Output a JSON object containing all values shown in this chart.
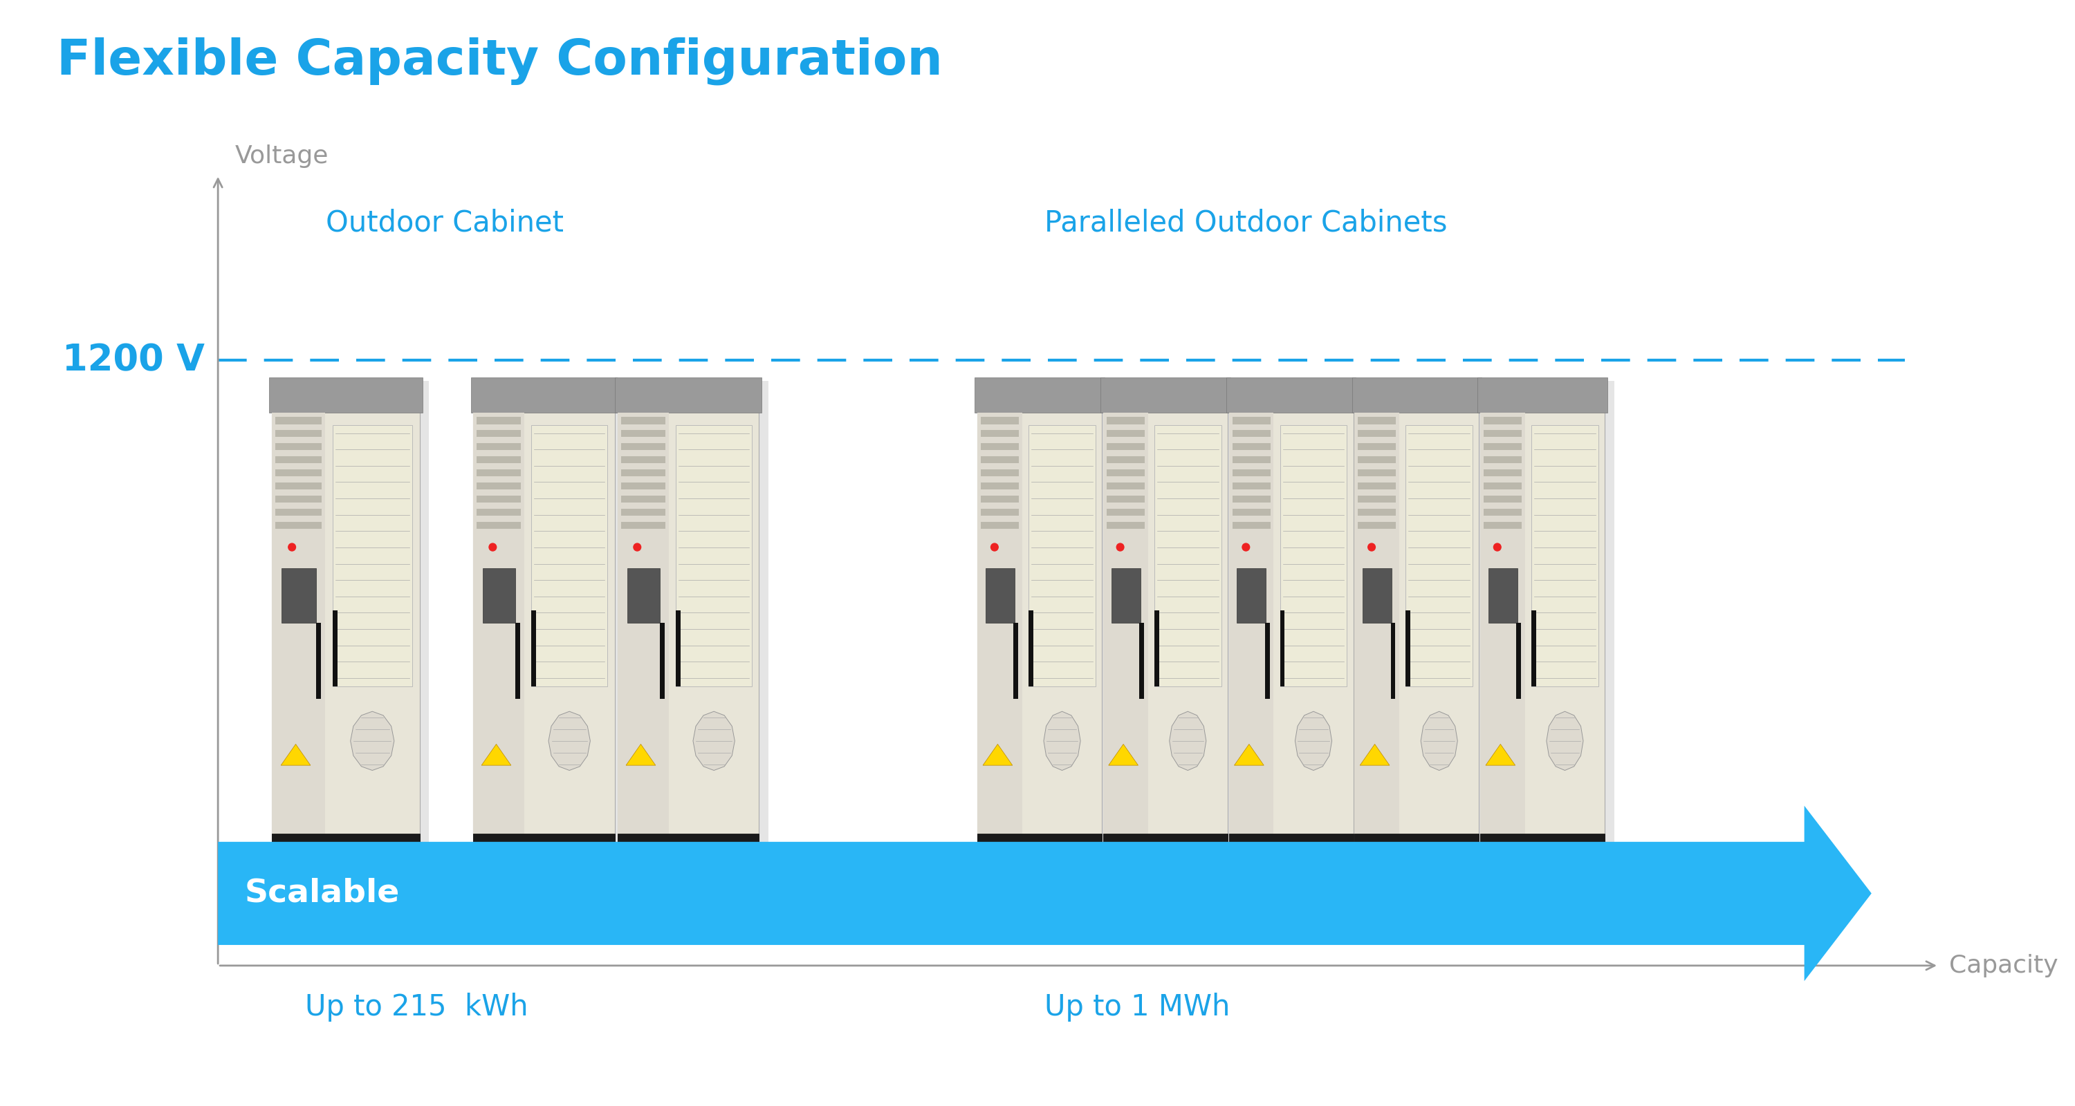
{
  "title": "Flexible Capacity Configuration",
  "title_color": "#1AA3E8",
  "title_fontsize": 52,
  "background_color": "#ffffff",
  "voltage_label": "Voltage",
  "voltage_label_color": "#999999",
  "voltage_label_fontsize": 26,
  "voltage_value": "1200 V",
  "voltage_value_color": "#1AA3E8",
  "voltage_value_fontsize": 38,
  "dashed_line_color": "#1AA3E8",
  "capacity_label": "Capacity",
  "capacity_label_color": "#999999",
  "capacity_label_fontsize": 26,
  "outdoor_cabinet_label": "Outdoor Cabinet",
  "outdoor_cabinet_color": "#1AA3E8",
  "outdoor_cabinet_fontsize": 30,
  "paralleled_label": "Paralleled Outdoor Cabinets",
  "paralleled_color": "#1AA3E8",
  "paralleled_fontsize": 30,
  "scalable_text": "Scalable",
  "scalable_text_color": "#ffffff",
  "scalable_arrow_color": "#29B6F6",
  "scalable_fontsize": 34,
  "capacity_215_label": "Up to 215  kWh",
  "capacity_1mwh_label": "Up to 1 MWh",
  "capacity_label_color2": "#1AA3E8",
  "capacity_label_fontsize2": 30,
  "axis_color": "#999999",
  "cab_body": "#E8E5D8",
  "cab_dark": "#C8C5B5",
  "cab_top": "#9A9A9A",
  "cab_vent": "#BDBAB0",
  "cab_ac_panel": "#E0DDD0",
  "cab_base": "#1A1A1A",
  "cab_door_color": "#E5E2D5",
  "cab_louver": "#C0BDB0"
}
